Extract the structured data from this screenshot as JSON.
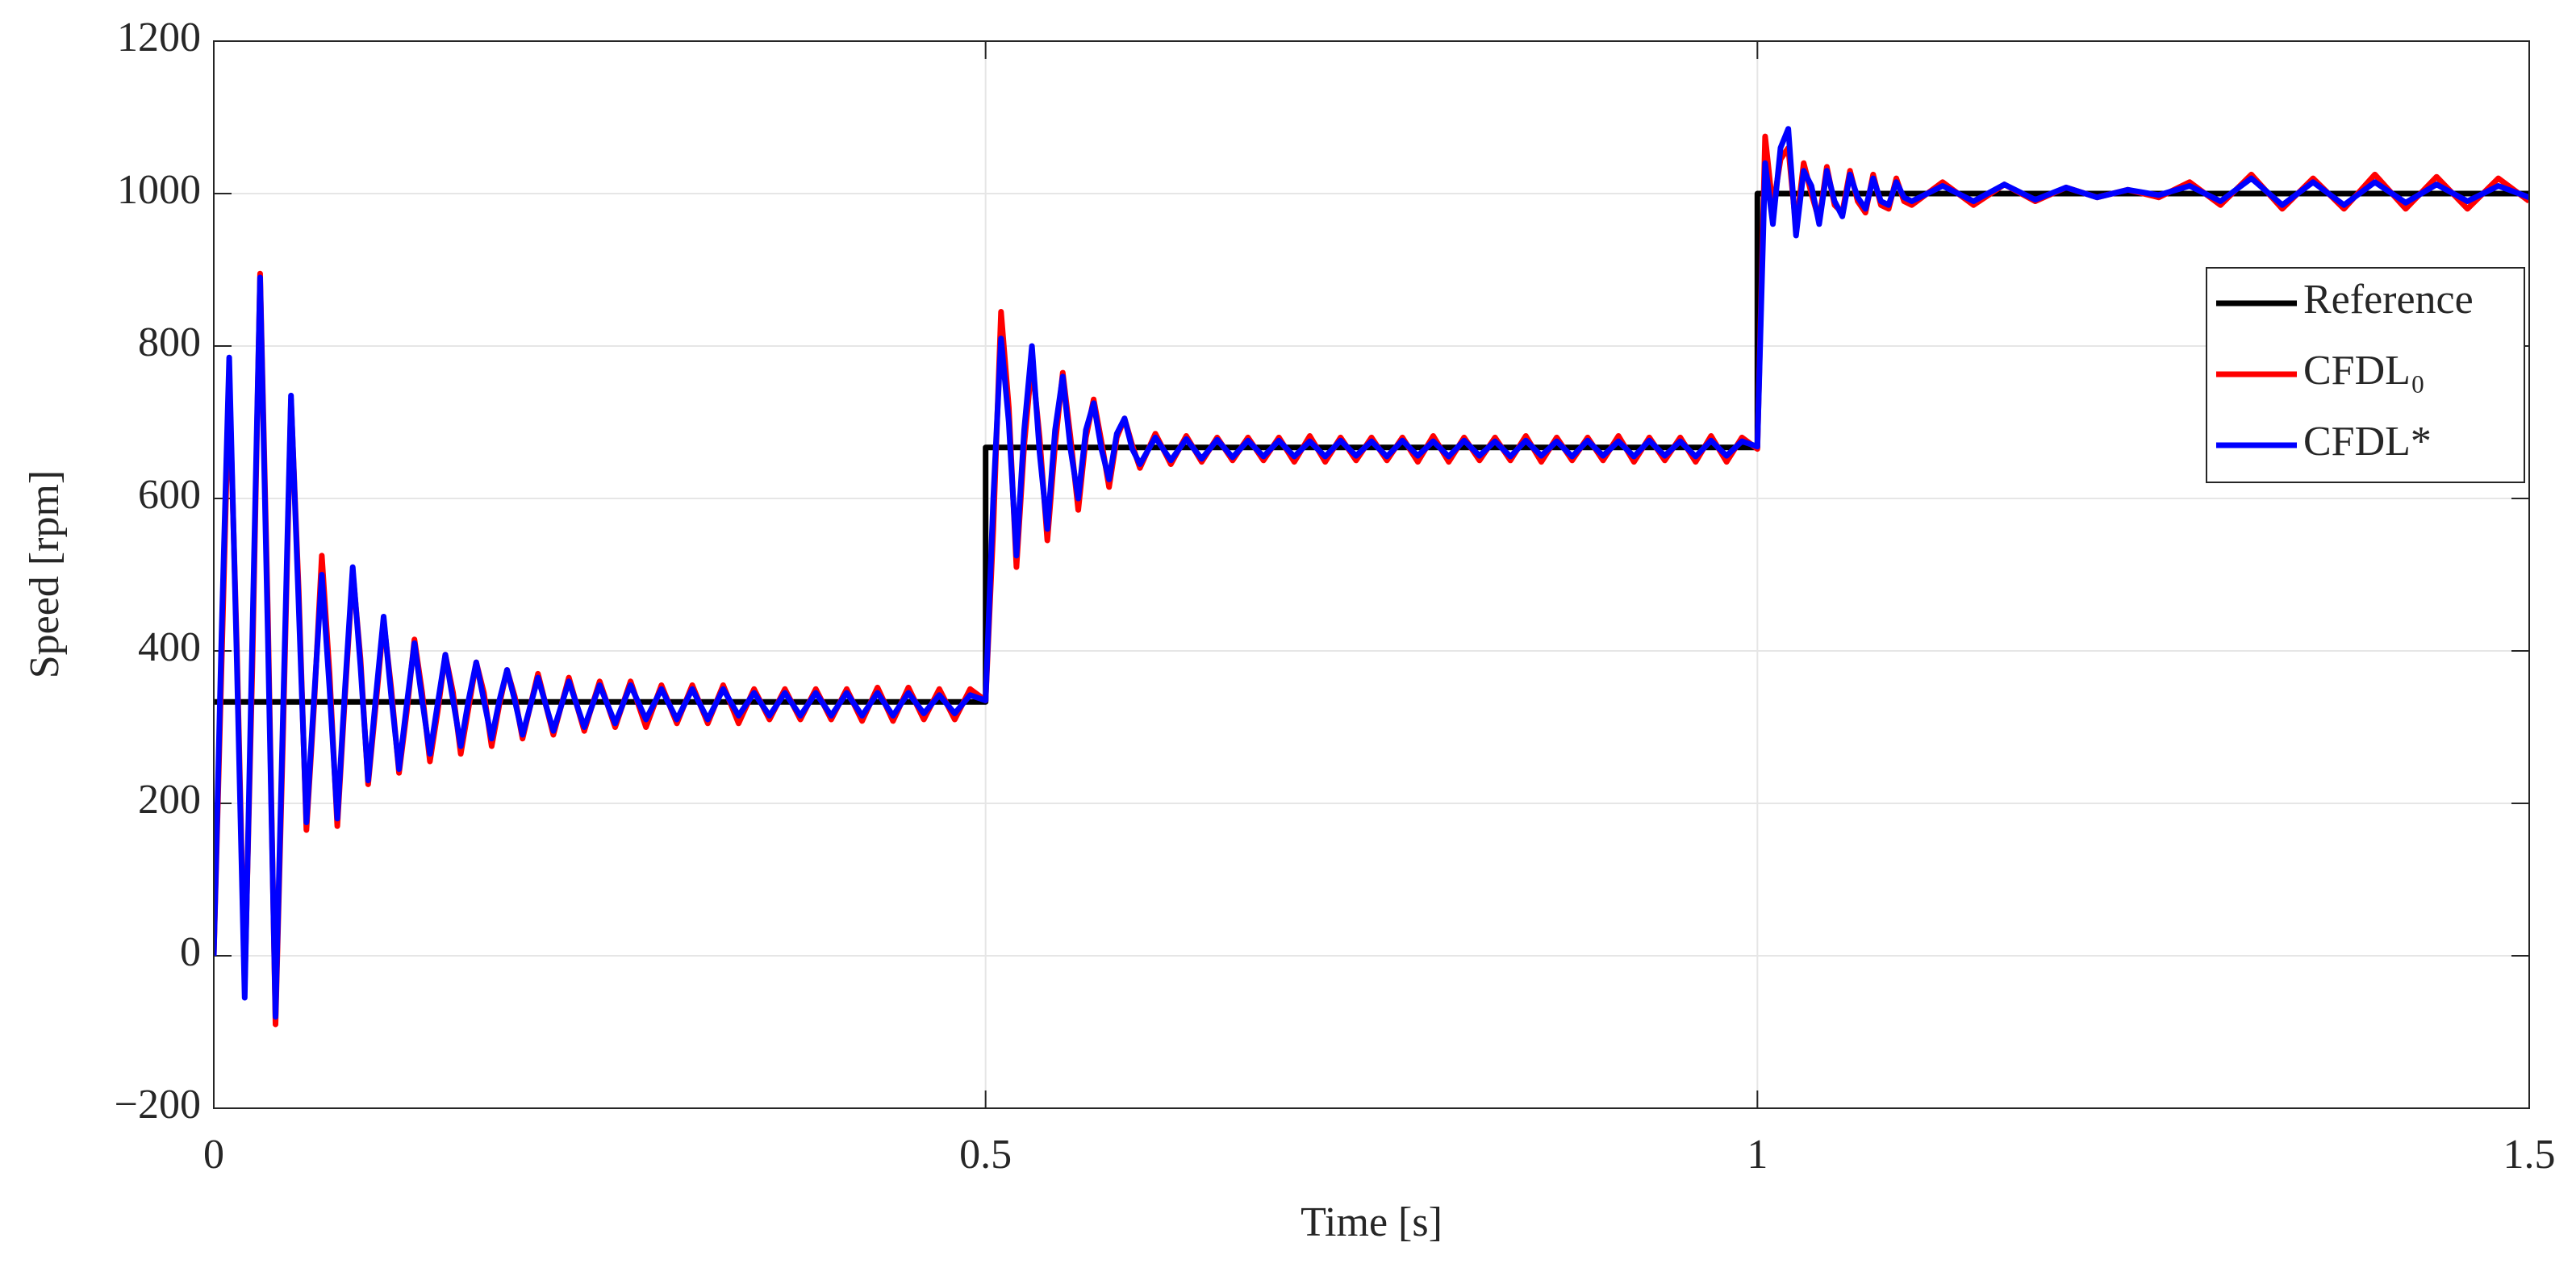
{
  "chart_data": {
    "type": "line",
    "xlabel": "Time [s]",
    "ylabel": "Speed [rpm]",
    "xlim": [
      0,
      1.5
    ],
    "ylim": [
      -200,
      1200
    ],
    "xticks": [
      0,
      0.5,
      1,
      1.5
    ],
    "yticks": [
      {
        "value": -200,
        "label": "−200"
      },
      0,
      200,
      400,
      600,
      800,
      1000,
      1200
    ],
    "grid": true,
    "legend": "upper right",
    "x": [
      0,
      0.005,
      0.01,
      0.015,
      0.02,
      0.025,
      0.03,
      0.035,
      0.04,
      0.045,
      0.05,
      0.055,
      0.06,
      0.065,
      0.07,
      0.075,
      0.08,
      0.085,
      0.09,
      0.095,
      0.1,
      0.105,
      0.11,
      0.115,
      0.12,
      0.125,
      0.13,
      0.135,
      0.14,
      0.145,
      0.15,
      0.155,
      0.16,
      0.165,
      0.17,
      0.175,
      0.18,
      0.185,
      0.19,
      0.195,
      0.2,
      0.21,
      0.22,
      0.23,
      0.24,
      0.25,
      0.26,
      0.27,
      0.28,
      0.29,
      0.3,
      0.31,
      0.32,
      0.33,
      0.34,
      0.35,
      0.36,
      0.37,
      0.38,
      0.39,
      0.4,
      0.41,
      0.42,
      0.43,
      0.44,
      0.45,
      0.46,
      0.47,
      0.48,
      0.49,
      0.5,
      0.505,
      0.51,
      0.515,
      0.52,
      0.525,
      0.53,
      0.535,
      0.54,
      0.545,
      0.55,
      0.555,
      0.56,
      0.565,
      0.57,
      0.575,
      0.58,
      0.585,
      0.59,
      0.595,
      0.6,
      0.61,
      0.62,
      0.63,
      0.64,
      0.65,
      0.66,
      0.67,
      0.68,
      0.69,
      0.7,
      0.71,
      0.72,
      0.73,
      0.74,
      0.75,
      0.76,
      0.77,
      0.78,
      0.79,
      0.8,
      0.81,
      0.82,
      0.83,
      0.84,
      0.85,
      0.86,
      0.87,
      0.88,
      0.89,
      0.9,
      0.91,
      0.92,
      0.93,
      0.94,
      0.95,
      0.96,
      0.97,
      0.98,
      0.99,
      1.0,
      1.005,
      1.01,
      1.015,
      1.02,
      1.025,
      1.03,
      1.035,
      1.04,
      1.045,
      1.05,
      1.055,
      1.06,
      1.065,
      1.07,
      1.075,
      1.08,
      1.085,
      1.09,
      1.095,
      1.1,
      1.12,
      1.14,
      1.16,
      1.18,
      1.2,
      1.22,
      1.24,
      1.26,
      1.28,
      1.3,
      1.32,
      1.34,
      1.36,
      1.38,
      1.4,
      1.42,
      1.44,
      1.46,
      1.48,
      1.5
    ],
    "series": [
      {
        "name": "Reference",
        "color": "#000000",
        "x": [
          0,
          0.5,
          0.5,
          1,
          1,
          1.5
        ],
        "values": [
          333,
          333,
          667,
          667,
          1000,
          1000
        ]
      },
      {
        "name": "CFDL₀",
        "color": "#ff0000",
        "values": [
          0,
          380,
          760,
          400,
          -40,
          380,
          895,
          450,
          -90,
          300,
          730,
          480,
          165,
          330,
          525,
          370,
          170,
          340,
          505,
          390,
          225,
          330,
          440,
          350,
          240,
          320,
          415,
          345,
          255,
          320,
          395,
          345,
          265,
          325,
          385,
          345,
          275,
          330,
          375,
          340,
          285,
          370,
          290,
          365,
          295,
          360,
          300,
          360,
          300,
          355,
          305,
          355,
          305,
          355,
          305,
          350,
          310,
          350,
          310,
          350,
          310,
          350,
          308,
          352,
          308,
          352,
          310,
          350,
          310,
          350,
          335,
          560,
          845,
          720,
          510,
          670,
          780,
          680,
          545,
          670,
          765,
          680,
          585,
          680,
          730,
          675,
          615,
          680,
          705,
          670,
          640,
          685,
          645,
          682,
          648,
          680,
          650,
          680,
          650,
          680,
          648,
          682,
          648,
          680,
          650,
          680,
          650,
          680,
          648,
          682,
          648,
          680,
          650,
          680,
          650,
          682,
          648,
          680,
          650,
          680,
          650,
          682,
          648,
          680,
          650,
          680,
          648,
          682,
          648,
          680,
          665,
          1075,
          980,
          1045,
          1060,
          955,
          1040,
          1000,
          965,
          1035,
          985,
          975,
          1030,
          990,
          975,
          1025,
          985,
          980,
          1020,
          990,
          985,
          1015,
          985,
          1012,
          990,
          1008,
          995,
          1005,
          995,
          1015,
          985,
          1025,
          980,
          1020,
          980,
          1025,
          980,
          1022,
          980,
          1020,
          990
        ]
      },
      {
        "name": "CFDL*",
        "color": "#0000ff",
        "values": [
          0,
          420,
          785,
          380,
          -55,
          420,
          890,
          420,
          -80,
          330,
          735,
          460,
          175,
          340,
          500,
          350,
          180,
          350,
          510,
          380,
          230,
          340,
          445,
          340,
          245,
          330,
          410,
          335,
          265,
          330,
          395,
          335,
          275,
          335,
          385,
          335,
          285,
          335,
          375,
          335,
          290,
          365,
          295,
          360,
          300,
          355,
          305,
          355,
          310,
          350,
          310,
          350,
          310,
          350,
          315,
          345,
          315,
          345,
          315,
          345,
          315,
          345,
          315,
          345,
          315,
          345,
          318,
          342,
          318,
          342,
          335,
          600,
          810,
          700,
          525,
          690,
          800,
          660,
          560,
          690,
          760,
          665,
          600,
          690,
          725,
          665,
          625,
          685,
          705,
          665,
          645,
          680,
          650,
          678,
          652,
          677,
          654,
          676,
          655,
          676,
          655,
          675,
          655,
          676,
          656,
          675,
          655,
          676,
          656,
          675,
          655,
          676,
          656,
          675,
          655,
          676,
          656,
          675,
          655,
          676,
          656,
          675,
          655,
          676,
          656,
          675,
          655,
          676,
          656,
          675,
          668,
          1040,
          960,
          1060,
          1085,
          945,
          1030,
          1010,
          960,
          1030,
          990,
          970,
          1025,
          995,
          980,
          1020,
          990,
          985,
          1015,
          995,
          990,
          1010,
          990,
          1012,
          992,
          1008,
          995,
          1005,
          998,
          1010,
          990,
          1020,
          985,
          1015,
          985,
          1015,
          988,
          1012,
          990,
          1010,
          995
        ]
      }
    ]
  }
}
